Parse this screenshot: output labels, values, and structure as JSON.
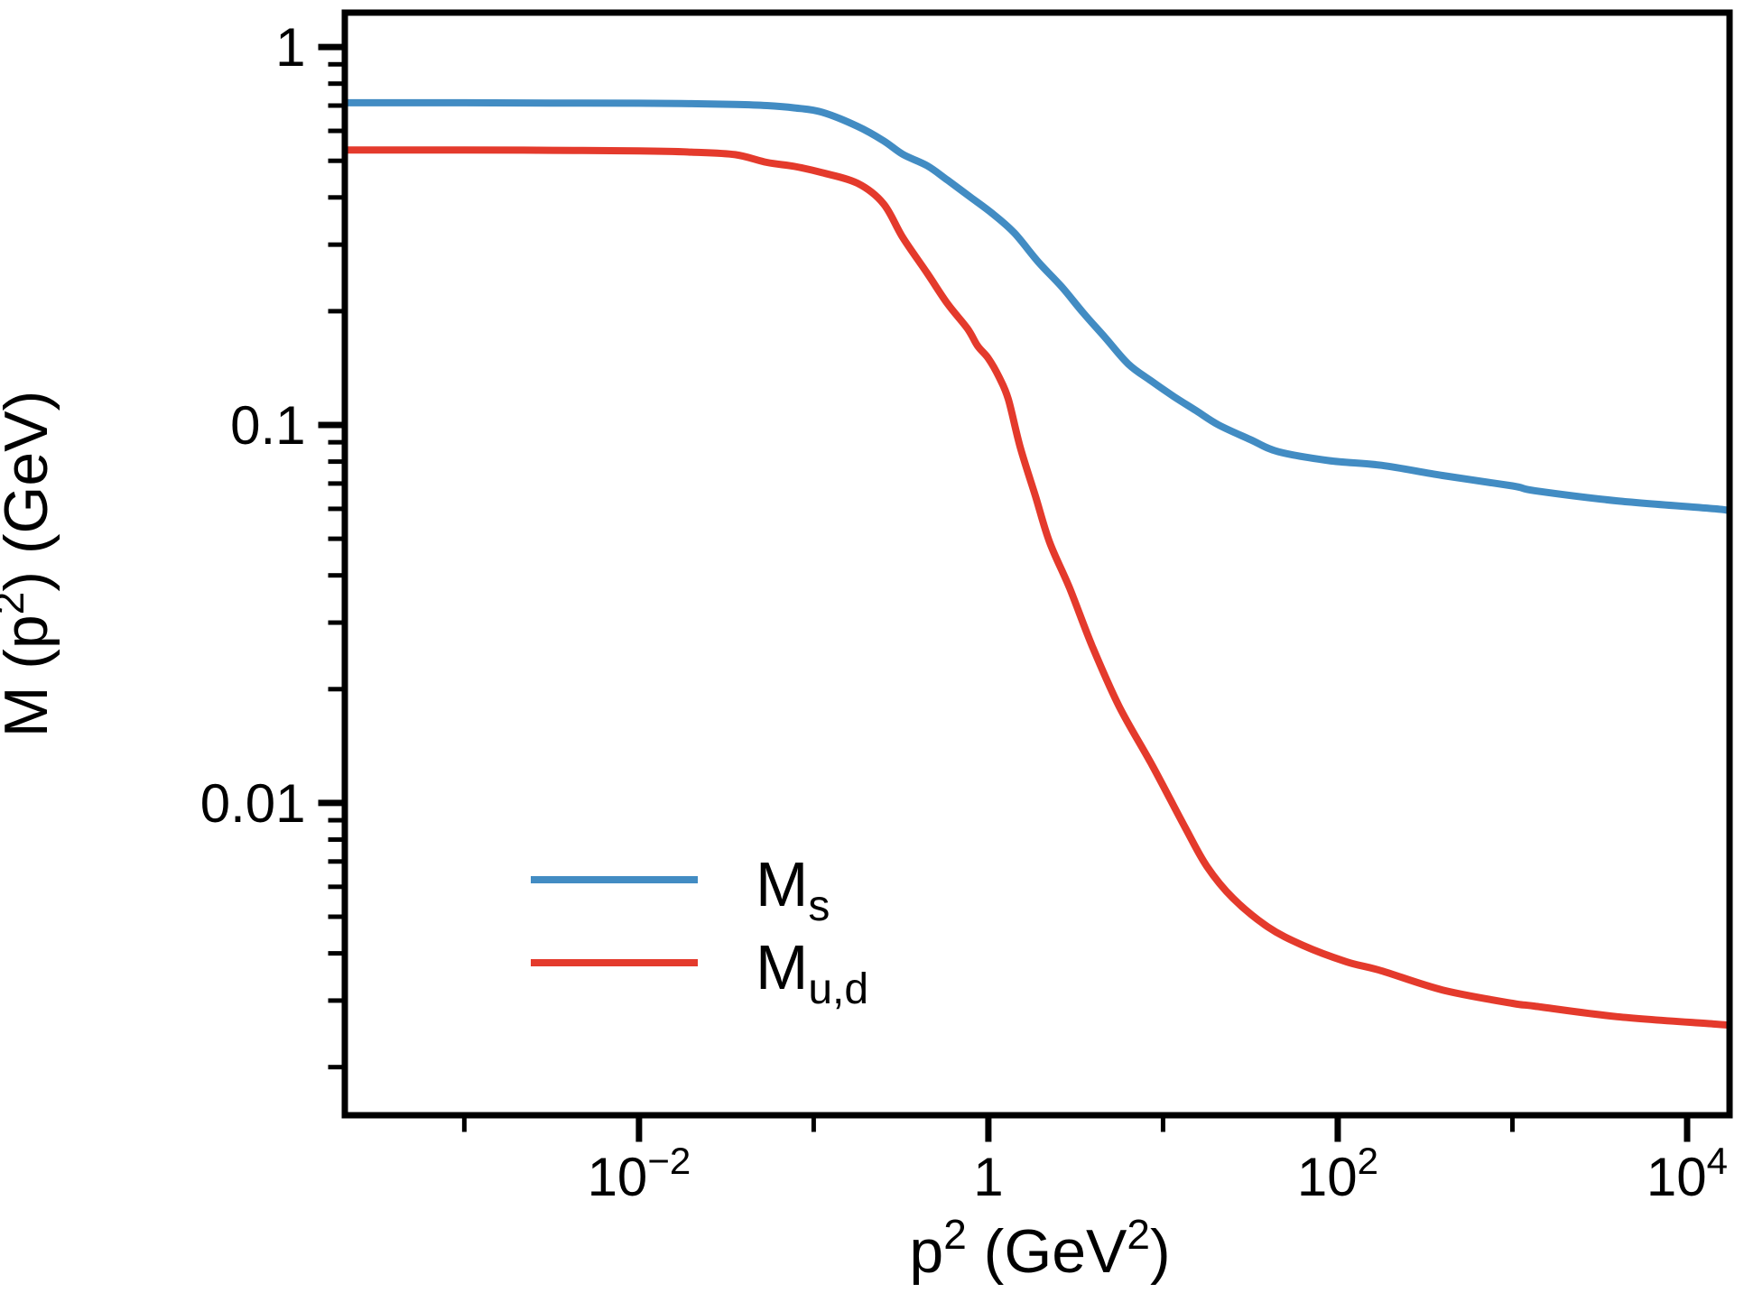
{
  "figure": {
    "background": "#ffffff",
    "axis_color": "#000000"
  },
  "chart_data": {
    "type": "line",
    "title": "",
    "xscale": "log",
    "yscale": "log",
    "xlabel_parts": [
      {
        "text": "p",
        "sup": false
      },
      {
        "text": "2",
        "sup": true
      },
      {
        "text": " (GeV",
        "sup": false
      },
      {
        "text": "2",
        "sup": true
      },
      {
        "text": ")",
        "sup": false
      }
    ],
    "ylabel_parts": [
      {
        "text": "M (p",
        "sup": false
      },
      {
        "text": "2",
        "sup": true
      },
      {
        "text": ") (GeV)",
        "sup": false
      }
    ],
    "xlim": [
      0.000207,
      17500
    ],
    "ylim": [
      0.001492,
      1.233
    ],
    "grid": false,
    "legend_position": "lower-left-inside",
    "x_ticks": [
      {
        "value": 0.001,
        "major": false,
        "label": null
      },
      {
        "value": 0.01,
        "major": true,
        "label": {
          "base": "10",
          "exp": "−2"
        }
      },
      {
        "value": 0.1,
        "major": false,
        "label": null
      },
      {
        "value": 1,
        "major": true,
        "label": {
          "base": "1",
          "exp": null
        }
      },
      {
        "value": 10,
        "major": false,
        "label": null
      },
      {
        "value": 100,
        "major": true,
        "label": {
          "base": "10",
          "exp": "2"
        }
      },
      {
        "value": 1000,
        "major": false,
        "label": null
      },
      {
        "value": 10000,
        "major": true,
        "label": {
          "base": "10",
          "exp": "4"
        }
      }
    ],
    "y_ticks_major": [
      {
        "value": 1,
        "label": "1"
      },
      {
        "value": 0.1,
        "label": "0.1"
      },
      {
        "value": 0.01,
        "label": "0.01"
      }
    ],
    "y_ticks_minor": [
      0.9,
      0.8,
      0.7,
      0.6,
      0.5,
      0.4,
      0.3,
      0.2,
      0.09,
      0.08,
      0.07,
      0.06,
      0.05,
      0.04,
      0.03,
      0.02,
      0.009,
      0.008,
      0.007,
      0.006,
      0.005,
      0.004,
      0.003,
      0.002
    ],
    "series": [
      {
        "name": "Ms",
        "legend_main": "M",
        "legend_sub": "s",
        "color": "#428cc3",
        "x": [
          0.000207,
          0.001,
          0.00316,
          0.01,
          0.02,
          0.0355,
          0.054,
          0.078,
          0.112,
          0.178,
          0.251,
          0.324,
          0.447,
          0.585,
          0.794,
          1.06,
          1.41,
          1.93,
          2.63,
          3.49,
          4.68,
          6.32,
          8.51,
          11.5,
          15.5,
          20.8,
          31.6,
          45.7,
          89,
          178,
          398,
          1000,
          1350,
          3980,
          14450,
          17500
        ],
        "y": [
          0.712,
          0.712,
          0.711,
          0.71,
          0.708,
          0.705,
          0.7,
          0.69,
          0.672,
          0.617,
          0.565,
          0.52,
          0.485,
          0.444,
          0.4,
          0.362,
          0.322,
          0.27,
          0.232,
          0.198,
          0.17,
          0.145,
          0.131,
          0.119,
          0.109,
          0.1,
          0.0915,
          0.085,
          0.0805,
          0.0782,
          0.0735,
          0.069,
          0.067,
          0.063,
          0.06,
          0.0592
        ]
      },
      {
        "name": "Mud",
        "legend_main": "M",
        "legend_sub": "u,d",
        "color": "#e43a2c",
        "x": [
          0.000207,
          0.001,
          0.00316,
          0.01,
          0.02,
          0.0355,
          0.054,
          0.078,
          0.112,
          0.178,
          0.251,
          0.324,
          0.447,
          0.585,
          0.759,
          0.867,
          1.0,
          1.15,
          1.3,
          1.52,
          1.86,
          2.24,
          2.92,
          3.93,
          5.61,
          8.73,
          13.4,
          17.8,
          25.1,
          39.8,
          63.1,
          112,
          177,
          398,
          1000,
          1340,
          3980,
          14450,
          17500
        ],
        "y": [
          0.534,
          0.534,
          0.533,
          0.531,
          0.527,
          0.519,
          0.495,
          0.483,
          0.465,
          0.436,
          0.385,
          0.313,
          0.252,
          0.209,
          0.18,
          0.162,
          0.15,
          0.134,
          0.117,
          0.0875,
          0.0648,
          0.049,
          0.037,
          0.026,
          0.018,
          0.0125,
          0.0086,
          0.0068,
          0.0056,
          0.0047,
          0.0042,
          0.0038,
          0.0036,
          0.0032,
          0.00295,
          0.0029,
          0.00272,
          0.0026,
          0.00258
        ]
      }
    ]
  }
}
